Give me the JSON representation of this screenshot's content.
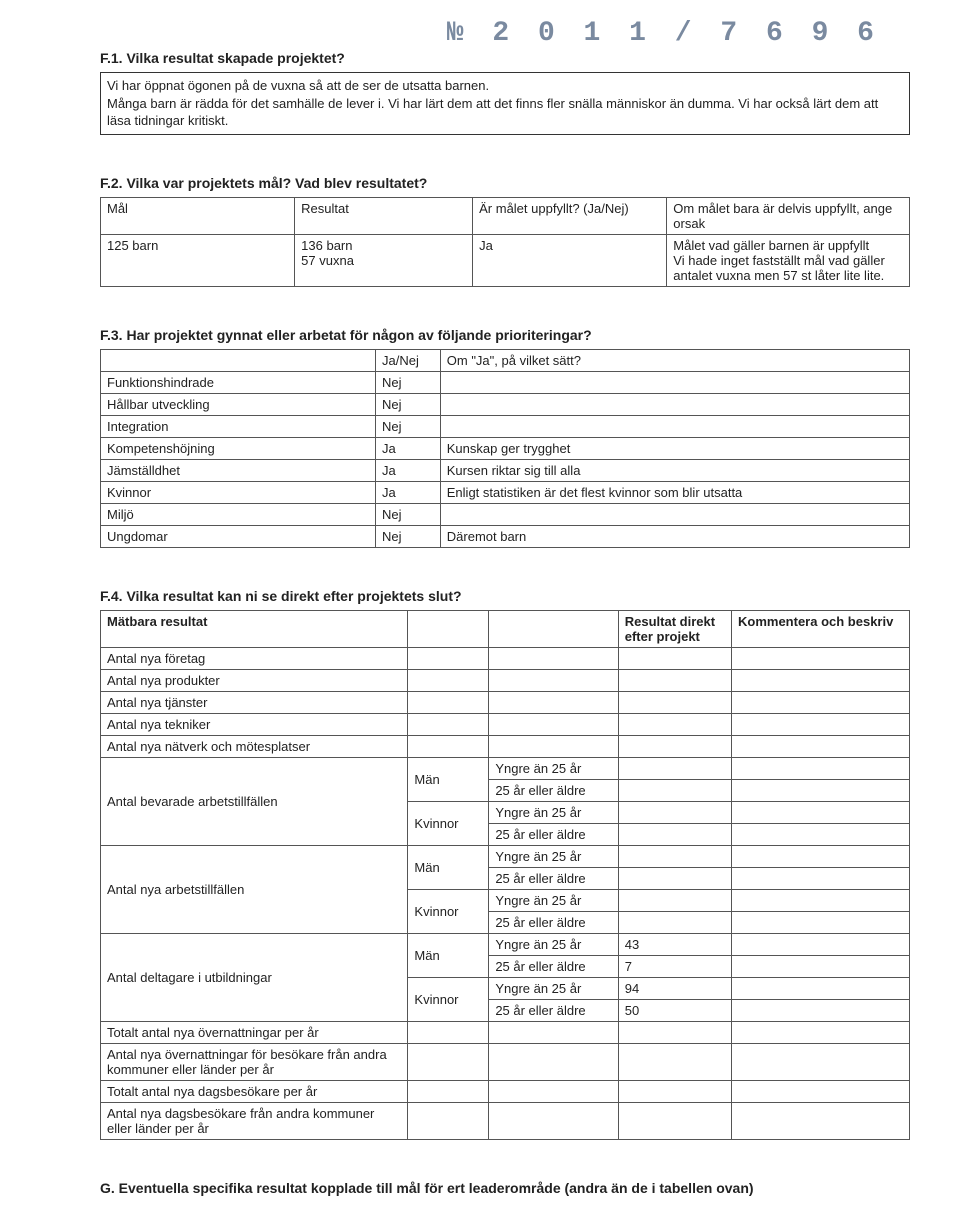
{
  "doc_number": "№ 2 0 1 1 / 7 6 9 6",
  "f1": {
    "heading": "F.1.  Vilka resultat skapade projektet?",
    "body": "Vi har öppnat ögonen på de vuxna så att de ser de utsatta barnen.\nMånga barn är rädda för det samhälle de lever i. Vi har lärt dem att det finns fler snälla människor än dumma. Vi har också lärt dem att läsa tidningar kritiskt."
  },
  "f2": {
    "heading": "F.2.  Vilka var projektets mål? Vad blev resultatet?",
    "headers": [
      "Mål",
      "Resultat",
      "Är målet uppfyllt? (Ja/Nej)",
      "Om målet bara är delvis uppfyllt, ange orsak"
    ],
    "row": {
      "mal": "125 barn",
      "resultat": "136 barn\n57 vuxna",
      "uppfyllt": "Ja",
      "orsak": "Målet vad gäller barnen är uppfyllt\nVi hade inget fastställt mål vad gäller antalet vuxna men 57 st låter lite lite."
    }
  },
  "f3": {
    "heading": "F.3.  Har projektet gynnat eller arbetat för någon av följande prioriteringar?",
    "headers": [
      "",
      "Ja/Nej",
      "Om \"Ja\", på vilket sätt?"
    ],
    "rows": [
      {
        "label": "Funktionshindrade",
        "janej": "Nej",
        "how": ""
      },
      {
        "label": "Hållbar utveckling",
        "janej": "Nej",
        "how": ""
      },
      {
        "label": "Integration",
        "janej": "Nej",
        "how": ""
      },
      {
        "label": "Kompetenshöjning",
        "janej": "Ja",
        "how": "Kunskap ger trygghet"
      },
      {
        "label": "Jämställdhet",
        "janej": "Ja",
        "how": "Kursen riktar sig till alla"
      },
      {
        "label": "Kvinnor",
        "janej": "Ja",
        "how": "Enligt statistiken är det flest kvinnor som blir utsatta"
      },
      {
        "label": "Miljö",
        "janej": "Nej",
        "how": ""
      },
      {
        "label": "Ungdomar",
        "janej": "Nej",
        "how": "Däremot barn"
      }
    ]
  },
  "f4": {
    "heading": "F.4.  Vilka resultat kan ni se direkt efter projektets slut?",
    "headers": [
      "Mätbara resultat",
      "",
      "",
      "Resultat direkt efter projekt",
      "Kommentera och beskriv"
    ],
    "simple": [
      "Antal nya företag",
      "Antal nya produkter",
      "Antal nya tjänster",
      "Antal nya tekniker",
      "Antal nya nätverk och mötesplatser"
    ],
    "gender_label_man": "Män",
    "gender_label_kvinnor": "Kvinnor",
    "age_young": "Yngre än 25 år",
    "age_old": "25 år eller äldre",
    "grouped": [
      {
        "label": "Antal bevarade arbetstillfällen",
        "vals": [
          "",
          "",
          "",
          ""
        ]
      },
      {
        "label": "Antal nya arbetstillfällen",
        "vals": [
          "",
          "",
          "",
          ""
        ]
      },
      {
        "label": "Antal deltagare i utbildningar",
        "vals": [
          "43",
          "7",
          "94",
          "50"
        ]
      }
    ],
    "tail": [
      "Totalt antal nya övernattningar per år",
      "Antal nya övernattningar för besökare från andra kommuner eller länder per år",
      "Totalt antal nya dagsbesökare per år",
      "Antal nya dagsbesökare från andra kommuner eller länder per år"
    ]
  },
  "g": {
    "heading": "G.  Eventuella specifika resultat kopplade till mål för ert leaderområde (andra än de i tabellen ovan)"
  }
}
